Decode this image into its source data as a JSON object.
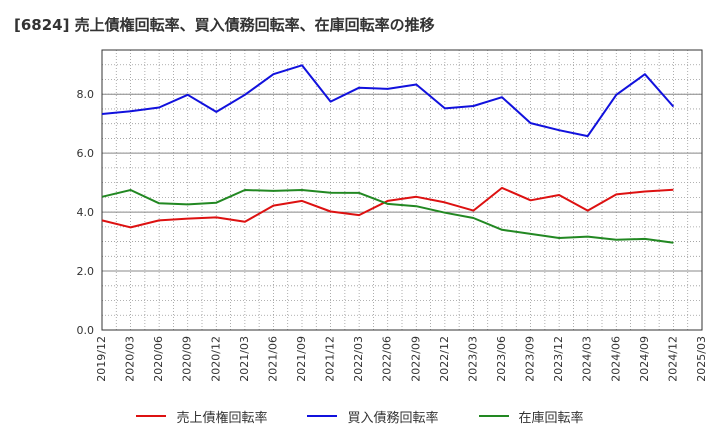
{
  "title": "[6824]  売上債権回転率、買入債務回転率、在庫回転率の推移",
  "chart_data": {
    "type": "line",
    "x": [
      "2019/12",
      "2020/03",
      "2020/06",
      "2020/09",
      "2020/12",
      "2021/03",
      "2021/06",
      "2021/09",
      "2021/12",
      "2022/03",
      "2022/06",
      "2022/09",
      "2022/12",
      "2023/03",
      "2023/06",
      "2023/09",
      "2023/12",
      "2024/03",
      "2024/06",
      "2024/09",
      "2024/12",
      "2025/03"
    ],
    "ylim": [
      0,
      9.5
    ],
    "yticks": [
      "0.0",
      "2.0",
      "4.0",
      "6.0",
      "8.0"
    ],
    "grid": true,
    "legend_position": "bottom",
    "series": [
      {
        "name": "売上債権回転率",
        "color": "#dd1111",
        "values": [
          3.72,
          3.48,
          3.72,
          3.78,
          3.82,
          3.67,
          4.22,
          4.38,
          4.02,
          3.9,
          4.38,
          4.52,
          4.33,
          4.05,
          4.82,
          4.4,
          4.58,
          4.05,
          4.6,
          4.7,
          4.76,
          null
        ]
      },
      {
        "name": "買入債務回転率",
        "color": "#1111dd",
        "values": [
          7.33,
          7.42,
          7.55,
          7.98,
          7.4,
          7.98,
          8.68,
          8.98,
          7.75,
          8.22,
          8.18,
          8.33,
          7.52,
          7.6,
          7.9,
          7.02,
          6.78,
          6.58,
          7.98,
          8.68,
          7.58,
          null
        ]
      },
      {
        "name": "在庫回転率",
        "color": "#228822",
        "values": [
          4.52,
          4.75,
          4.3,
          4.26,
          4.32,
          4.75,
          4.72,
          4.75,
          4.66,
          4.65,
          4.28,
          4.2,
          3.98,
          3.8,
          3.4,
          3.26,
          3.12,
          3.17,
          3.06,
          3.09,
          2.96,
          null
        ]
      }
    ]
  }
}
